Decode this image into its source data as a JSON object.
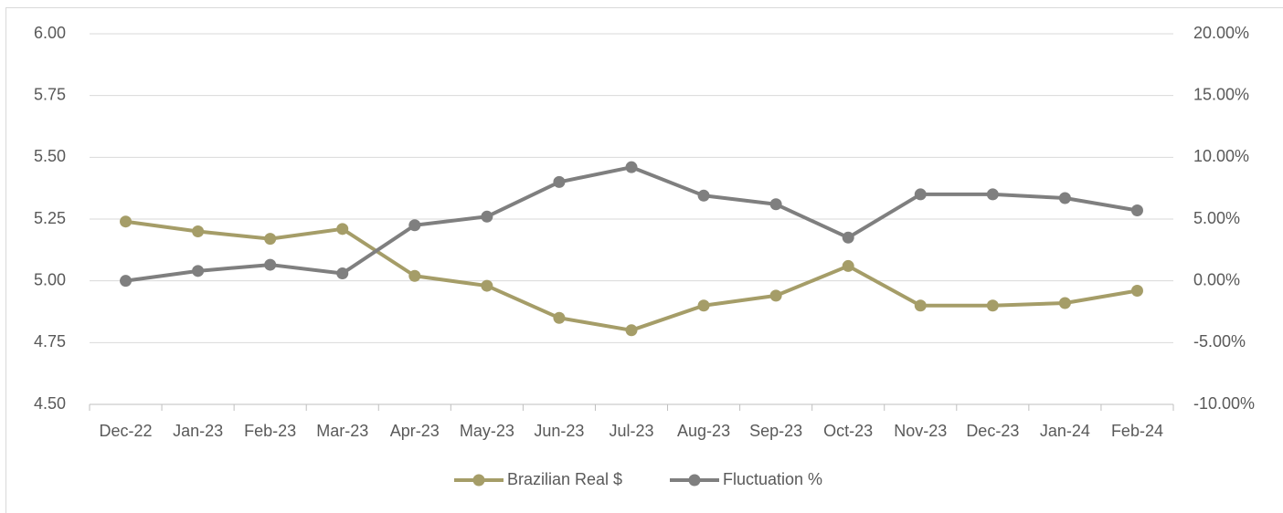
{
  "chart_data": {
    "type": "line",
    "categories": [
      "Dec-22",
      "Jan-23",
      "Feb-23",
      "Mar-23",
      "Apr-23",
      "May-23",
      "Jun-23",
      "Jul-23",
      "Aug-23",
      "Sep-23",
      "Oct-23",
      "Nov-23",
      "Dec-23",
      "Jan-24",
      "Feb-24"
    ],
    "series": [
      {
        "name": "Brazilian Real $",
        "color": "#a59d68",
        "values": [
          5.24,
          5.2,
          5.17,
          5.21,
          5.02,
          4.98,
          4.85,
          4.8,
          4.9,
          4.94,
          5.06,
          4.9,
          4.9,
          4.91,
          4.96
        ]
      },
      {
        "name": "Fluctuation %",
        "color": "#7f7f7f",
        "axis": "y2",
        "values": [
          0,
          0.8,
          1.3,
          0.6,
          4.5,
          5.2,
          8.0,
          9.2,
          6.9,
          6.2,
          3.5,
          7.0,
          7.0,
          6.7,
          5.7
        ]
      }
    ],
    "ylim": [
      4.5,
      6
    ],
    "yticks": [
      {
        "value": 4.5,
        "label": "4.50"
      },
      {
        "value": 4.75,
        "label": "4.75"
      },
      {
        "value": 5,
        "label": "5.00"
      },
      {
        "value": 5.25,
        "label": "5.25"
      },
      {
        "value": 5.5,
        "label": "5.50"
      },
      {
        "value": 5.75,
        "label": "5.75"
      },
      {
        "value": 6,
        "label": "6.00"
      }
    ],
    "y2lim": [
      -10,
      20
    ],
    "y2ticks": [
      {
        "value": -10,
        "label": "-10.00%"
      },
      {
        "value": -5,
        "label": "-5.00%"
      },
      {
        "value": 0,
        "label": "0.00%"
      },
      {
        "value": 5,
        "label": "5.00%"
      },
      {
        "value": 10,
        "label": "10.00%"
      },
      {
        "value": 15,
        "label": "15.00%"
      },
      {
        "value": 20,
        "label": "20.00%"
      }
    ],
    "grid": true,
    "legend": "bottom"
  }
}
